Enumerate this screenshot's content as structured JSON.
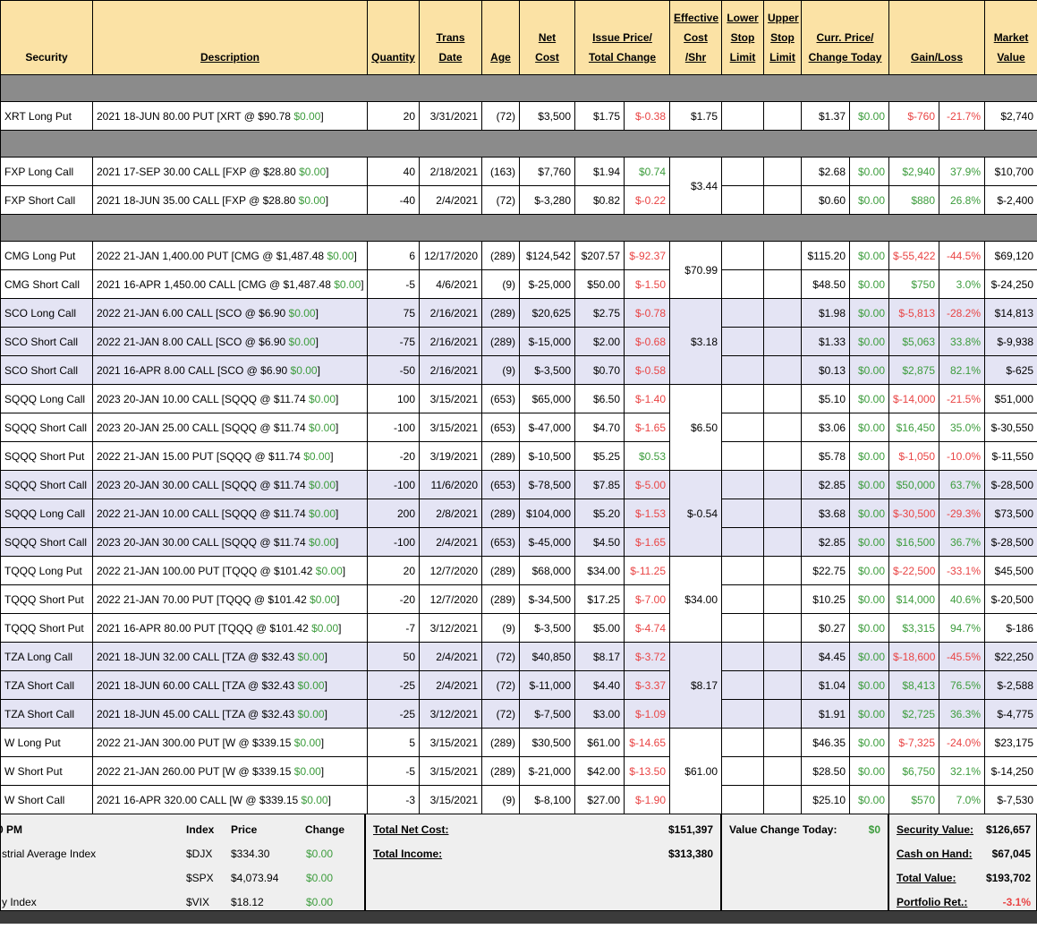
{
  "colors": {
    "green": "#3C9C3C",
    "red": "#E94444",
    "header_bg": "#FBE2A5",
    "lavender": "#E4E4F4",
    "separator": "#8B8B8B",
    "summary_bg": "#EFEFEF",
    "band": "#3B3B3B"
  },
  "misc": {
    "bracket": "]"
  },
  "table": {
    "headers": {
      "security": [
        "Security"
      ],
      "description": [
        "Description"
      ],
      "quantity": [
        "Quantity"
      ],
      "trans_date": [
        "Trans",
        "Date"
      ],
      "age": [
        "Age"
      ],
      "net_cost": [
        "Net",
        "Cost"
      ],
      "issue_price_total_change": [
        "Issue Price/",
        "Total Change"
      ],
      "effective_cost_shr": [
        "Effective",
        "Cost",
        "/Shr"
      ],
      "lower_stop_limit": [
        "Lower",
        "Stop",
        "Limit"
      ],
      "upper_stop_limit": [
        "Upper",
        "Stop",
        "Limit"
      ],
      "curr_price_change_today": [
        "Curr. Price/",
        "Change Today"
      ],
      "gain_loss": [
        "Gain/Loss"
      ],
      "market_value": [
        "Market",
        "Value"
      ]
    },
    "groups": [
      {
        "shade": "white",
        "sep_before": true,
        "effective_cost": "$1.75",
        "rows": [
          {
            "security": "XRT Long Put",
            "desc": "2021 18-JUN 80.00 PUT [XRT @ $90.78",
            "chg": "$0.00",
            "qty": "20",
            "date": "3/31/2021",
            "age": "(72)",
            "net": "$3,500",
            "issue": "$1.75",
            "tchg": "$-0.38",
            "curr": "$1.37",
            "today": "$0.00",
            "gain": "$-760",
            "pct": "-21.7%",
            "mv": "$2,740"
          }
        ]
      },
      {
        "shade": "white",
        "sep_before": true,
        "effective_cost": "$3.44",
        "rows": [
          {
            "security": "FXP Long Call",
            "desc": "2021 17-SEP 30.00 CALL [FXP @ $28.80",
            "chg": "$0.00",
            "qty": "40",
            "date": "2/18/2021",
            "age": "(163)",
            "net": "$7,760",
            "issue": "$1.94",
            "tchg": "$0.74",
            "curr": "$2.68",
            "today": "$0.00",
            "gain": "$2,940",
            "pct": "37.9%",
            "mv": "$10,700"
          },
          {
            "security": "FXP Short Call",
            "desc": "2021 18-JUN 35.00 CALL [FXP @ $28.80",
            "chg": "$0.00",
            "qty": "-40",
            "date": "2/4/2021",
            "age": "(72)",
            "net": "$-3,280",
            "issue": "$0.82",
            "tchg": "$-0.22",
            "curr": "$0.60",
            "today": "$0.00",
            "gain": "$880",
            "pct": "26.8%",
            "mv": "$-2,400"
          }
        ]
      },
      {
        "shade": "white",
        "sep_before": true,
        "effective_cost": "$70.99",
        "rows": [
          {
            "security": "CMG Long Put",
            "desc": "2022 21-JAN 1,400.00 PUT [CMG @ $1,487.48",
            "chg": "$0.00",
            "qty": "6",
            "date": "12/17/2020",
            "age": "(289)",
            "net": "$124,542",
            "issue": "$207.57",
            "tchg": "$-92.37",
            "curr": "$115.20",
            "today": "$0.00",
            "gain": "$-55,422",
            "pct": "-44.5%",
            "mv": "$69,120"
          },
          {
            "security": "CMG Short Call",
            "desc": "2021 16-APR 1,450.00 CALL [CMG @ $1,487.48",
            "chg": "$0.00",
            "qty": "-5",
            "date": "4/6/2021",
            "age": "(9)",
            "net": "$-25,000",
            "issue": "$50.00",
            "tchg": "$-1.50",
            "curr": "$48.50",
            "today": "$0.00",
            "gain": "$750",
            "pct": "3.0%",
            "mv": "$-24,250"
          }
        ]
      },
      {
        "shade": "lav",
        "sep_before": false,
        "effective_cost": "$3.18",
        "rows": [
          {
            "security": "SCO Long Call",
            "desc": "2022 21-JAN 6.00 CALL [SCO @ $6.90",
            "chg": "$0.00",
            "qty": "75",
            "date": "2/16/2021",
            "age": "(289)",
            "net": "$20,625",
            "issue": "$2.75",
            "tchg": "$-0.78",
            "curr": "$1.98",
            "today": "$0.00",
            "gain": "$-5,813",
            "pct": "-28.2%",
            "mv": "$14,813"
          },
          {
            "security": "SCO Short Call",
            "desc": "2022 21-JAN 8.00 CALL [SCO @ $6.90",
            "chg": "$0.00",
            "qty": "-75",
            "date": "2/16/2021",
            "age": "(289)",
            "net": "$-15,000",
            "issue": "$2.00",
            "tchg": "$-0.68",
            "curr": "$1.33",
            "today": "$0.00",
            "gain": "$5,063",
            "pct": "33.8%",
            "mv": "$-9,938"
          },
          {
            "security": "SCO Short Call",
            "desc": "2021 16-APR 8.00 CALL [SCO @ $6.90",
            "chg": "$0.00",
            "qty": "-50",
            "date": "2/16/2021",
            "age": "(9)",
            "net": "$-3,500",
            "issue": "$0.70",
            "tchg": "$-0.58",
            "curr": "$0.13",
            "today": "$0.00",
            "gain": "$2,875",
            "pct": "82.1%",
            "mv": "$-625"
          }
        ]
      },
      {
        "shade": "white",
        "sep_before": false,
        "effective_cost": "$6.50",
        "rows": [
          {
            "security": "SQQQ Long Call",
            "desc": "2023 20-JAN 10.00 CALL [SQQQ @ $11.74",
            "chg": "$0.00",
            "qty": "100",
            "date": "3/15/2021",
            "age": "(653)",
            "net": "$65,000",
            "issue": "$6.50",
            "tchg": "$-1.40",
            "curr": "$5.10",
            "today": "$0.00",
            "gain": "$-14,000",
            "pct": "-21.5%",
            "mv": "$51,000"
          },
          {
            "security": "SQQQ Short Call",
            "desc": "2023 20-JAN 25.00 CALL [SQQQ @ $11.74",
            "chg": "$0.00",
            "qty": "-100",
            "date": "3/15/2021",
            "age": "(653)",
            "net": "$-47,000",
            "issue": "$4.70",
            "tchg": "$-1.65",
            "curr": "$3.06",
            "today": "$0.00",
            "gain": "$16,450",
            "pct": "35.0%",
            "mv": "$-30,550"
          },
          {
            "security": "SQQQ Short Put",
            "desc": "2022 21-JAN 15.00 PUT [SQQQ @ $11.74",
            "chg": "$0.00",
            "qty": "-20",
            "date": "3/19/2021",
            "age": "(289)",
            "net": "$-10,500",
            "issue": "$5.25",
            "tchg": "$0.53",
            "curr": "$5.78",
            "today": "$0.00",
            "gain": "$-1,050",
            "pct": "-10.0%",
            "mv": "$-11,550"
          }
        ]
      },
      {
        "shade": "lav",
        "sep_before": false,
        "effective_cost": "$-0.54",
        "rows": [
          {
            "security": "SQQQ Short Call",
            "desc": "2023 20-JAN 30.00 CALL [SQQQ @ $11.74",
            "chg": "$0.00",
            "qty": "-100",
            "date": "11/6/2020",
            "age": "(653)",
            "net": "$-78,500",
            "issue": "$7.85",
            "tchg": "$-5.00",
            "curr": "$2.85",
            "today": "$0.00",
            "gain": "$50,000",
            "pct": "63.7%",
            "mv": "$-28,500"
          },
          {
            "security": "SQQQ Long Call",
            "desc": "2022 21-JAN 10.00 CALL [SQQQ @ $11.74",
            "chg": "$0.00",
            "qty": "200",
            "date": "2/8/2021",
            "age": "(289)",
            "net": "$104,000",
            "issue": "$5.20",
            "tchg": "$-1.53",
            "curr": "$3.68",
            "today": "$0.00",
            "gain": "$-30,500",
            "pct": "-29.3%",
            "mv": "$73,500"
          },
          {
            "security": "SQQQ Short Call",
            "desc": "2023 20-JAN 30.00 CALL [SQQQ @ $11.74",
            "chg": "$0.00",
            "qty": "-100",
            "date": "2/4/2021",
            "age": "(653)",
            "net": "$-45,000",
            "issue": "$4.50",
            "tchg": "$-1.65",
            "curr": "$2.85",
            "today": "$0.00",
            "gain": "$16,500",
            "pct": "36.7%",
            "mv": "$-28,500"
          }
        ]
      },
      {
        "shade": "white",
        "sep_before": false,
        "effective_cost": "$34.00",
        "rows": [
          {
            "security": "TQQQ Long Put",
            "desc": "2022 21-JAN 100.00 PUT [TQQQ @ $101.42",
            "chg": "$0.00",
            "qty": "20",
            "date": "12/7/2020",
            "age": "(289)",
            "net": "$68,000",
            "issue": "$34.00",
            "tchg": "$-11.25",
            "curr": "$22.75",
            "today": "$0.00",
            "gain": "$-22,500",
            "pct": "-33.1%",
            "mv": "$45,500"
          },
          {
            "security": "TQQQ Short Put",
            "desc": "2022 21-JAN 70.00 PUT [TQQQ @ $101.42",
            "chg": "$0.00",
            "qty": "-20",
            "date": "12/7/2020",
            "age": "(289)",
            "net": "$-34,500",
            "issue": "$17.25",
            "tchg": "$-7.00",
            "curr": "$10.25",
            "today": "$0.00",
            "gain": "$14,000",
            "pct": "40.6%",
            "mv": "$-20,500"
          },
          {
            "security": "TQQQ Short Put",
            "desc": "2021 16-APR 80.00 PUT [TQQQ @ $101.42",
            "chg": "$0.00",
            "qty": "-7",
            "date": "3/12/2021",
            "age": "(9)",
            "net": "$-3,500",
            "issue": "$5.00",
            "tchg": "$-4.74",
            "curr": "$0.27",
            "today": "$0.00",
            "gain": "$3,315",
            "pct": "94.7%",
            "mv": "$-186"
          }
        ]
      },
      {
        "shade": "lav",
        "sep_before": false,
        "effective_cost": "$8.17",
        "rows": [
          {
            "security": "TZA Long Call",
            "desc": "2021 18-JUN 32.00 CALL [TZA @ $32.43",
            "chg": "$0.00",
            "qty": "50",
            "date": "2/4/2021",
            "age": "(72)",
            "net": "$40,850",
            "issue": "$8.17",
            "tchg": "$-3.72",
            "curr": "$4.45",
            "today": "$0.00",
            "gain": "$-18,600",
            "pct": "-45.5%",
            "mv": "$22,250"
          },
          {
            "security": "TZA Short Call",
            "desc": "2021 18-JUN 60.00 CALL [TZA @ $32.43",
            "chg": "$0.00",
            "qty": "-25",
            "date": "2/4/2021",
            "age": "(72)",
            "net": "$-11,000",
            "issue": "$4.40",
            "tchg": "$-3.37",
            "curr": "$1.04",
            "today": "$0.00",
            "gain": "$8,413",
            "pct": "76.5%",
            "mv": "$-2,588"
          },
          {
            "security": "TZA Short Call",
            "desc": "2021 18-JUN 45.00 CALL [TZA @ $32.43",
            "chg": "$0.00",
            "qty": "-25",
            "date": "3/12/2021",
            "age": "(72)",
            "net": "$-7,500",
            "issue": "$3.00",
            "tchg": "$-1.09",
            "curr": "$1.91",
            "today": "$0.00",
            "gain": "$2,725",
            "pct": "36.3%",
            "mv": "$-4,775"
          }
        ]
      },
      {
        "shade": "white",
        "sep_before": false,
        "effective_cost": "$61.00",
        "rows": [
          {
            "security": "W Long Put",
            "desc": "2022 21-JAN 300.00 PUT [W @ $339.15",
            "chg": "$0.00",
            "qty": "5",
            "date": "3/15/2021",
            "age": "(289)",
            "net": "$30,500",
            "issue": "$61.00",
            "tchg": "$-14.65",
            "curr": "$46.35",
            "today": "$0.00",
            "gain": "$-7,325",
            "pct": "-24.0%",
            "mv": "$23,175"
          },
          {
            "security": "W Short Put",
            "desc": "2022 21-JAN 260.00 PUT [W @ $339.15",
            "chg": "$0.00",
            "qty": "-5",
            "date": "3/15/2021",
            "age": "(289)",
            "net": "$-21,000",
            "issue": "$42.00",
            "tchg": "$-13.50",
            "curr": "$28.50",
            "today": "$0.00",
            "gain": "$6,750",
            "pct": "32.1%",
            "mv": "$-14,250"
          },
          {
            "security": "W Short Call",
            "desc": "2021 16-APR 320.00 CALL [W @ $339.15",
            "chg": "$0.00",
            "qty": "-3",
            "date": "3/15/2021",
            "age": "(9)",
            "net": "$-8,100",
            "issue": "$27.00",
            "tchg": "$-1.90",
            "curr": "$25.10",
            "today": "$0.00",
            "gain": "$570",
            "pct": "7.0%",
            "mv": "$-7,530"
          }
        ]
      }
    ]
  },
  "summary": {
    "left": {
      "time": "0 PM",
      "col_headers": {
        "index": "Index",
        "price": "Price",
        "change": "Change"
      },
      "rows": [
        {
          "name": "strial Average Index",
          "index": "$DJX",
          "price": "$334.30",
          "change": "$0.00"
        },
        {
          "name": "",
          "index": "$SPX",
          "price": "$4,073.94",
          "change": "$0.00"
        },
        {
          "name": "y Index",
          "index": "$VIX",
          "price": "$18.12",
          "change": "$0.00"
        }
      ]
    },
    "totals": {
      "net_cost_label": "Total Net Cost:",
      "net_cost": "$151,397",
      "income_label": "Total Income:",
      "income": "$313,380"
    },
    "value_change": {
      "label": "Value Change Today:",
      "value": "$0"
    },
    "account": {
      "security_value_label": "Security Value:",
      "security_value": "$126,657",
      "cash_label": "Cash on Hand:",
      "cash": "$67,045",
      "total_label": "Total Value:",
      "total": "$193,702",
      "return_label": "Portfolio Ret.:",
      "return": "-3.1%"
    }
  }
}
